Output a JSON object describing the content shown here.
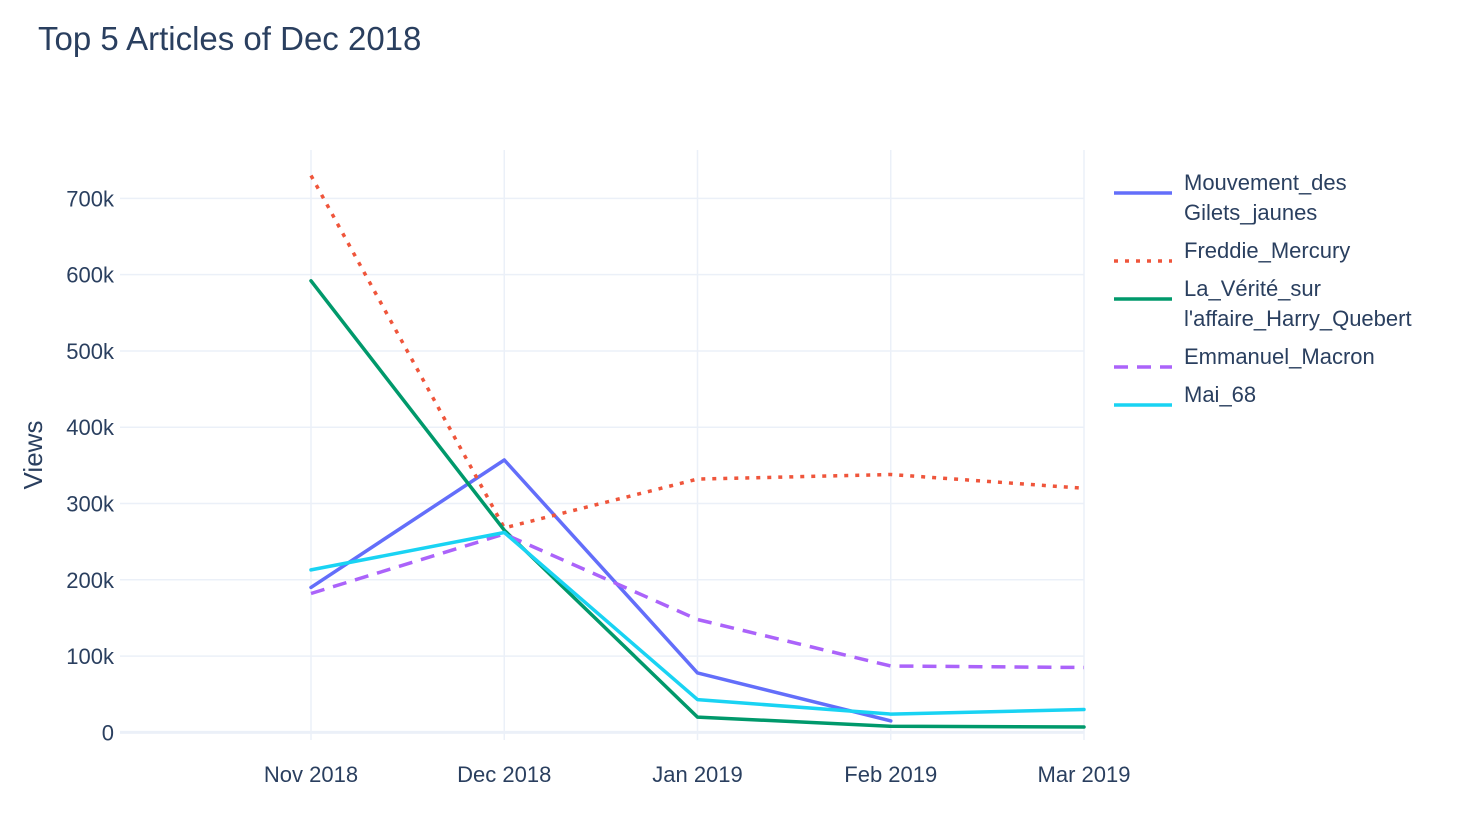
{
  "chart_data": {
    "type": "line",
    "title": "Top 5 Articles of Dec 2018",
    "xlabel": "",
    "ylabel": "Views",
    "x": [
      "2018-11",
      "2018-12",
      "2019-01",
      "2019-02",
      "2019-03"
    ],
    "x_tick_labels": [
      "Nov 2018",
      "Dec 2018",
      "Jan 2019",
      "Feb 2019",
      "Mar 2019"
    ],
    "y_ticks": [
      0,
      100000,
      200000,
      300000,
      400000,
      500000,
      600000,
      700000
    ],
    "y_tick_labels": [
      "0",
      "100k",
      "200k",
      "300k",
      "400k",
      "500k",
      "600k",
      "700k"
    ],
    "ylim": [
      -10000,
      770000
    ],
    "grid": true,
    "legend_position": "top-right",
    "series": [
      {
        "name": "Mouvement_des Gilets_jaunes",
        "legend_lines": [
          "Mouvement_des",
          "Gilets_jaunes"
        ],
        "values": [
          190000,
          357000,
          78000,
          15000,
          null
        ],
        "color": "#636efa",
        "dash": "solid"
      },
      {
        "name": "Freddie_Mercury",
        "legend_lines": [
          "Freddie_Mercury"
        ],
        "values": [
          730000,
          268000,
          332000,
          338000,
          320000
        ],
        "color": "#ef553b",
        "dash": "dot"
      },
      {
        "name": "La_Vérité_sur l'affaire_Harry_Quebert",
        "legend_lines": [
          "La_Vérité_sur",
          "l'affaire_Harry_Quebert"
        ],
        "values": [
          592000,
          265000,
          20000,
          8000,
          7000
        ],
        "color": "#00996b",
        "dash": "solid"
      },
      {
        "name": "Emmanuel_Macron",
        "legend_lines": [
          "Emmanuel_Macron"
        ],
        "values": [
          182000,
          260000,
          148000,
          87000,
          85000
        ],
        "color": "#ab63fa",
        "dash": "dash"
      },
      {
        "name": "Mai_68",
        "legend_lines": [
          "Mai_68"
        ],
        "values": [
          213000,
          262000,
          43000,
          24000,
          30000
        ],
        "color": "#19d3f3",
        "dash": "solid"
      }
    ]
  }
}
